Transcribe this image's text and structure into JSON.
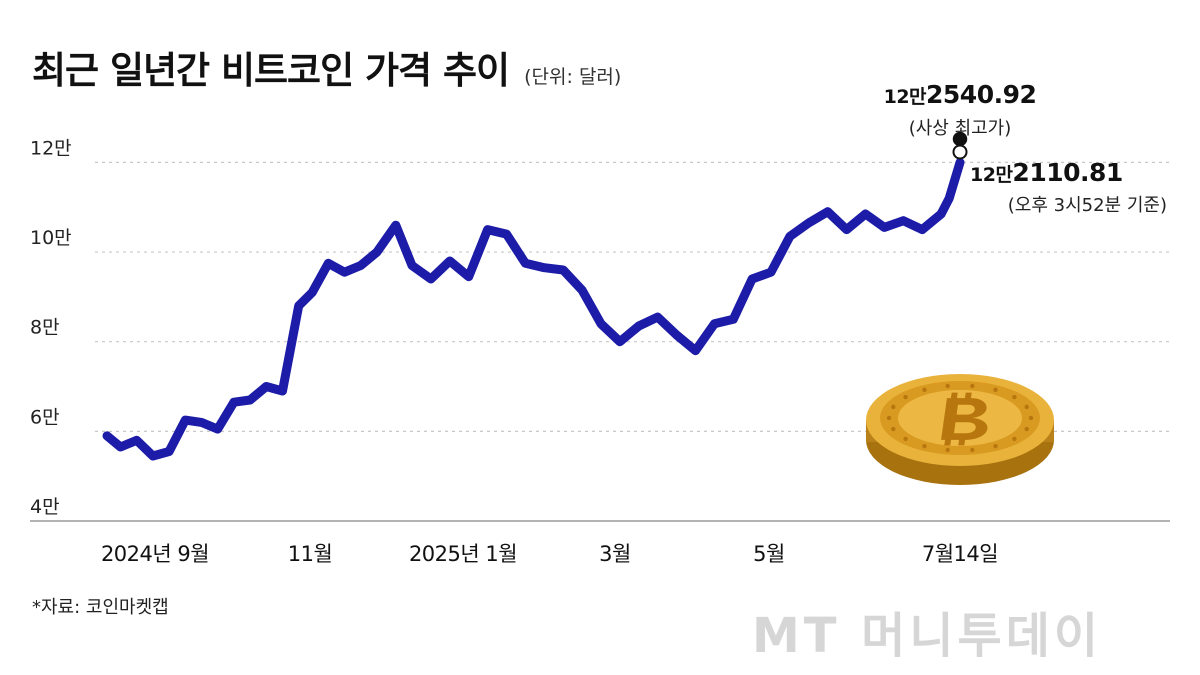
{
  "header": {
    "title": "최근 일년간 비트코인 가격 추이",
    "unit": "(단위: 달러)"
  },
  "source": "*자료: 코인마켓캡",
  "watermark": "MT 머니투데이",
  "colors": {
    "line": "#1c1ca8",
    "grid": "#c8c8c8",
    "axis": "#9a9a9a",
    "coin": "#e2a82e"
  },
  "icons": {
    "coin": "bitcoin-coin-icon"
  },
  "annotations": {
    "high_value_prefix": "12만",
    "high_value_suffix": "2540.92",
    "high_label": "(사상 최고가)",
    "current_value_prefix": "12만",
    "current_value_suffix": "2110.81",
    "current_label": "(오후 3시52분 기준)"
  },
  "chart_data": {
    "type": "line",
    "title": "최근 일년간 비트코인 가격 추이",
    "unit": "(단위: 달러)",
    "xlabel": "",
    "ylabel": "",
    "x_ticks": [
      "2024년 9월",
      "11월",
      "2025년 1월",
      "3월",
      "5월",
      "7월14일"
    ],
    "y_ticks": [
      {
        "value": 120000,
        "label": "12만"
      },
      {
        "value": 100000,
        "label": "10만"
      },
      {
        "value": 80000,
        "label": "8만"
      },
      {
        "value": 60000,
        "label": "6만"
      },
      {
        "value": 40000,
        "label": "4만"
      }
    ],
    "ylim": [
      40000,
      125000
    ],
    "grid": true,
    "series": [
      {
        "x": [
          "2024-09-01",
          "2024-09-06",
          "2024-09-12",
          "2024-09-18",
          "2024-09-24",
          "2024-09-30",
          "2024-10-06",
          "2024-10-12",
          "2024-10-18",
          "2024-10-24",
          "2024-10-30",
          "2024-11-05",
          "2024-11-11",
          "2024-11-16",
          "2024-11-22",
          "2024-11-28",
          "2024-12-04",
          "2024-12-10",
          "2024-12-17",
          "2024-12-23",
          "2024-12-30",
          "2025-01-06",
          "2025-01-13",
          "2025-01-20",
          "2025-01-27",
          "2025-02-03",
          "2025-02-10",
          "2025-02-17",
          "2025-02-24",
          "2025-03-03",
          "2025-03-10",
          "2025-03-17",
          "2025-03-24",
          "2025-03-31",
          "2025-04-07",
          "2025-04-14",
          "2025-04-21",
          "2025-04-28",
          "2025-05-05",
          "2025-05-12",
          "2025-05-19",
          "2025-05-26",
          "2025-06-02",
          "2025-06-09",
          "2025-06-16",
          "2025-06-23",
          "2025-06-30",
          "2025-07-07",
          "2025-07-10",
          "2025-07-14"
        ],
        "values": [
          59000,
          56500,
          58000,
          54500,
          55500,
          62500,
          62000,
          60500,
          66500,
          67000,
          70000,
          69000,
          88000,
          91000,
          97500,
          95500,
          97000,
          100000,
          106000,
          97000,
          94000,
          98000,
          94500,
          105000,
          104000,
          97500,
          96500,
          96000,
          91500,
          84000,
          80000,
          83500,
          85500,
          81500,
          78000,
          84000,
          85000,
          94000,
          95500,
          103500,
          106500,
          109000,
          105000,
          108500,
          105500,
          107000,
          105000,
          108500,
          112000,
          120000
        ]
      }
    ],
    "annotations": [
      {
        "label": "12만2540.92",
        "note": "(사상 최고가)",
        "value": 122540.92
      },
      {
        "label": "12만2110.81",
        "note": "(오후 3시52분 기준)",
        "value": 122110.81
      }
    ]
  }
}
